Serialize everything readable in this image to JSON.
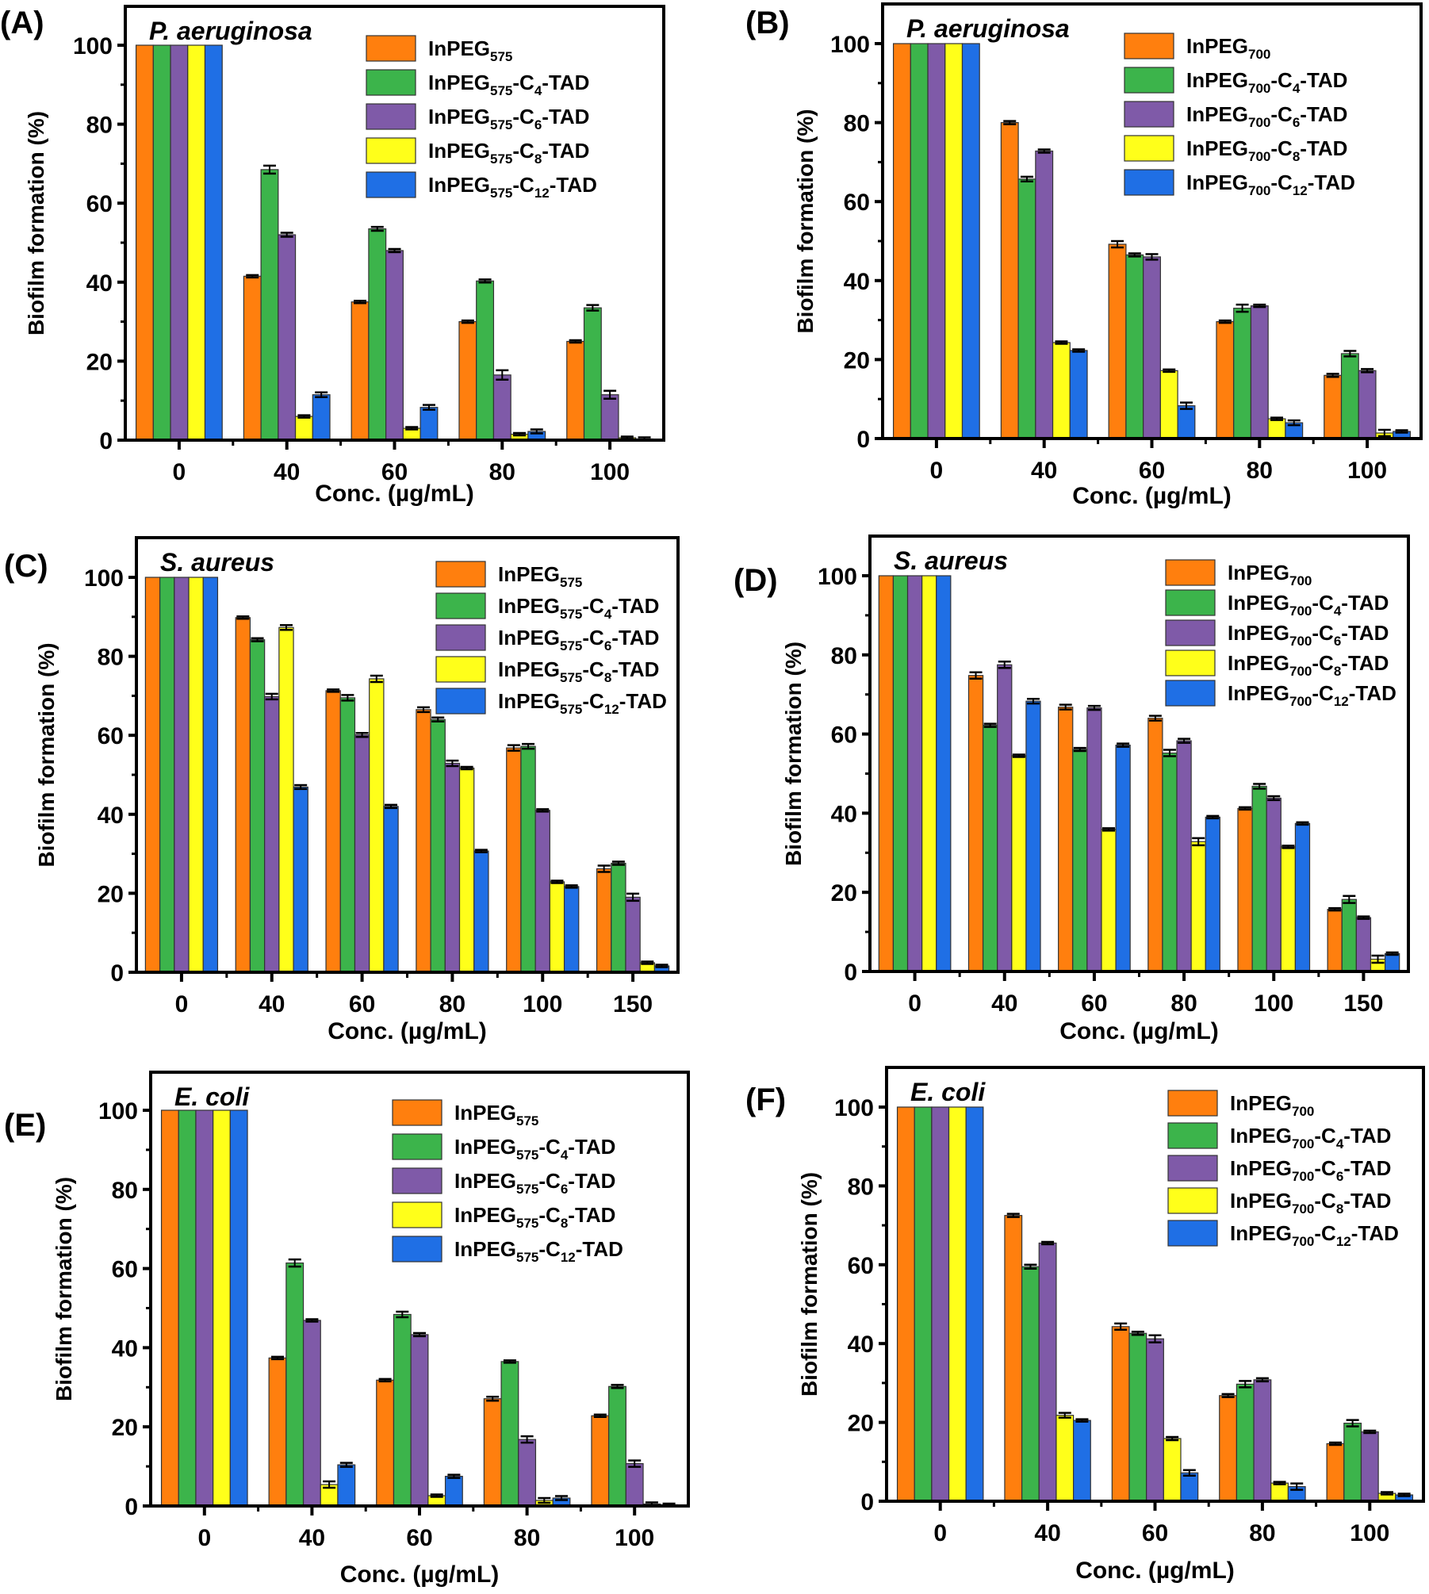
{
  "colors": {
    "series": [
      "#ff7f0e",
      "#3cb44b",
      "#7f5aa8",
      "#ffff1a",
      "#1f6fe5"
    ],
    "axis": "#000000",
    "bar_stroke": "#333333"
  },
  "chart_data": [
    {
      "panel_label": "(A)",
      "type": "bar",
      "organism": "P. aeruginosa",
      "xlabel": "Conc. (µg/mL)",
      "ylabel": "Biofilm formation (%)",
      "ylim": [
        0,
        110
      ],
      "yticks": [
        "0",
        "20",
        "40",
        "60",
        "80",
        "100"
      ],
      "categories": [
        "0",
        "40",
        "60",
        "80",
        "100"
      ],
      "legend_position": "top-right",
      "series": [
        {
          "name": "InPEG",
          "sub": "575",
          "suffix": "",
          "cn": "",
          "values": [
            100,
            41.5,
            35,
            30,
            25
          ],
          "errors": [
            0,
            0.3,
            0.3,
            0.3,
            0.2
          ]
        },
        {
          "name": "InPEG",
          "sub": "575",
          "suffix": "-TAD",
          "cn": "4",
          "values": [
            100,
            68.5,
            53.5,
            40.3,
            33.5
          ],
          "errors": [
            0,
            1,
            0.5,
            0.4,
            0.7
          ]
        },
        {
          "name": "InPEG",
          "sub": "575",
          "suffix": "-TAD",
          "cn": "6",
          "values": [
            100,
            52,
            48,
            16.5,
            11.5
          ],
          "errors": [
            0,
            0.5,
            0.4,
            1.2,
            1.0
          ]
        },
        {
          "name": "InPEG",
          "sub": "575",
          "suffix": "-TAD",
          "cn": "8",
          "values": [
            100,
            6,
            3,
            1.5,
            0.6
          ],
          "errors": [
            0,
            0.3,
            0.3,
            0.2,
            0.3
          ]
        },
        {
          "name": "InPEG",
          "sub": "575",
          "suffix": "-TAD",
          "cn": "12",
          "values": [
            100,
            11.5,
            8.3,
            2.2,
            0.3
          ],
          "errors": [
            0,
            0.6,
            0.6,
            0.5,
            0.4
          ]
        }
      ]
    },
    {
      "panel_label": "(B)",
      "type": "bar",
      "organism": "P. aeruginosa",
      "xlabel": "Conc. (µg/mL)",
      "ylabel": "Biofilm formation (%)",
      "ylim": [
        0,
        110
      ],
      "yticks": [
        "0",
        "20",
        "40",
        "60",
        "80",
        "100"
      ],
      "categories": [
        "0",
        "40",
        "60",
        "80",
        "100"
      ],
      "legend_position": "top-right",
      "series": [
        {
          "name": "InPEG",
          "sub": "700",
          "suffix": "",
          "cn": "",
          "values": [
            100,
            80,
            49.2,
            29.6,
            16
          ],
          "errors": [
            0,
            0.4,
            0.8,
            0.3,
            0.4
          ]
        },
        {
          "name": "InPEG",
          "sub": "700",
          "suffix": "-TAD",
          "cn": "4",
          "values": [
            100,
            65.7,
            46.5,
            33,
            21.5
          ],
          "errors": [
            0,
            0.6,
            0.4,
            0.9,
            0.7
          ]
        },
        {
          "name": "InPEG",
          "sub": "700",
          "suffix": "-TAD",
          "cn": "6",
          "values": [
            100,
            72.8,
            46,
            33.6,
            17.2
          ],
          "errors": [
            0,
            0.4,
            0.7,
            0.3,
            0.4
          ]
        },
        {
          "name": "InPEG",
          "sub": "700",
          "suffix": "-TAD",
          "cn": "8",
          "values": [
            100,
            24.3,
            17.2,
            5,
            1.4
          ],
          "errors": [
            0,
            0.3,
            0.3,
            0.3,
            0.8
          ]
        },
        {
          "name": "InPEG",
          "sub": "700",
          "suffix": "-TAD",
          "cn": "12",
          "values": [
            100,
            22.3,
            8.3,
            4,
            1.8
          ],
          "errors": [
            0,
            0.3,
            0.8,
            0.6,
            0.3
          ]
        }
      ]
    },
    {
      "panel_label": "(C)",
      "type": "bar",
      "organism": "S. aureus",
      "xlabel": "Conc. (µg/mL)",
      "ylabel": "Biofilm formation (%)",
      "ylim": [
        0,
        110
      ],
      "yticks": [
        "0",
        "20",
        "40",
        "60",
        "80",
        "100"
      ],
      "categories": [
        "0",
        "40",
        "60",
        "80",
        "100",
        "150"
      ],
      "legend_position": "top-right",
      "series": [
        {
          "name": "InPEG",
          "sub": "575",
          "suffix": "",
          "cn": "",
          "values": [
            100,
            89.8,
            71.3,
            66.5,
            56.8,
            26.2
          ],
          "errors": [
            0,
            0.3,
            0.3,
            0.6,
            0.7,
            0.8
          ]
        },
        {
          "name": "InPEG",
          "sub": "575",
          "suffix": "-TAD",
          "cn": "4",
          "values": [
            100,
            84.2,
            69.5,
            64,
            57.2,
            27.6
          ],
          "errors": [
            0,
            0.4,
            0.7,
            0.5,
            0.6,
            0.4
          ]
        },
        {
          "name": "InPEG",
          "sub": "575",
          "suffix": "-TAD",
          "cn": "6",
          "values": [
            100,
            69.8,
            60.1,
            52.9,
            41,
            19
          ],
          "errors": [
            0,
            0.7,
            0.5,
            0.7,
            0.3,
            0.9
          ]
        },
        {
          "name": "InPEG",
          "sub": "575",
          "suffix": "-TAD",
          "cn": "8",
          "values": [
            100,
            87.3,
            74.3,
            51.7,
            22.9,
            2.4
          ],
          "errors": [
            0,
            0.6,
            0.8,
            0.3,
            0.3,
            0.3
          ]
        },
        {
          "name": "InPEG",
          "sub": "575",
          "suffix": "-TAD",
          "cn": "12",
          "values": [
            100,
            46.9,
            42,
            30.7,
            21.7,
            1.6
          ],
          "errors": [
            0,
            0.5,
            0.4,
            0.3,
            0.3,
            0.3
          ]
        }
      ]
    },
    {
      "panel_label": "(D)",
      "type": "bar",
      "organism": "S. aureus",
      "xlabel": "Conc. (µg/mL)",
      "ylabel": "Biofilm formation (%)",
      "ylim": [
        0,
        110
      ],
      "yticks": [
        "0",
        "20",
        "40",
        "60",
        "80",
        "100"
      ],
      "categories": [
        "0",
        "40",
        "60",
        "80",
        "100",
        "150"
      ],
      "legend_position": "top-right",
      "series": [
        {
          "name": "InPEG",
          "sub": "700",
          "suffix": "",
          "cn": "",
          "values": [
            100,
            74.8,
            66.8,
            64,
            41.2,
            15.7
          ],
          "errors": [
            0,
            0.8,
            0.6,
            0.6,
            0.3,
            0.3
          ]
        },
        {
          "name": "InPEG",
          "sub": "700",
          "suffix": "-TAD",
          "cn": "4",
          "values": [
            100,
            62.2,
            56.1,
            55.2,
            46.8,
            18.2
          ],
          "errors": [
            0,
            0.4,
            0.4,
            0.8,
            0.6,
            0.9
          ]
        },
        {
          "name": "InPEG",
          "sub": "700",
          "suffix": "-TAD",
          "cn": "6",
          "values": [
            100,
            77.5,
            66.6,
            58.3,
            43.8,
            13.6
          ],
          "errors": [
            0,
            0.8,
            0.5,
            0.5,
            0.5,
            0.3
          ]
        },
        {
          "name": "InPEG",
          "sub": "700",
          "suffix": "-TAD",
          "cn": "8",
          "values": [
            100,
            54.5,
            35.9,
            32.8,
            31.5,
            3.1
          ],
          "errors": [
            0,
            0.3,
            0.2,
            0.9,
            0.3,
            0.9
          ]
        },
        {
          "name": "InPEG",
          "sub": "700",
          "suffix": "-TAD",
          "cn": "12",
          "values": [
            100,
            68.3,
            57.2,
            39,
            37.4,
            4.5
          ],
          "errors": [
            0,
            0.6,
            0.4,
            0.3,
            0.3,
            0.2
          ]
        }
      ]
    },
    {
      "panel_label": "(E)",
      "type": "bar",
      "organism": "E. coli",
      "xlabel": "Conc. (µg/mL)",
      "ylabel": "Biofilm formation (%)",
      "ylim": [
        0,
        110
      ],
      "yticks": [
        "0",
        "20",
        "40",
        "60",
        "80",
        "100"
      ],
      "categories": [
        "0",
        "40",
        "60",
        "80",
        "100"
      ],
      "legend_position": "top-right",
      "series": [
        {
          "name": "InPEG",
          "sub": "575",
          "suffix": "",
          "cn": "",
          "values": [
            100,
            37.4,
            31.8,
            27.1,
            22.8
          ],
          "errors": [
            0,
            0.2,
            0.3,
            0.5,
            0.2
          ]
        },
        {
          "name": "InPEG",
          "sub": "575",
          "suffix": "-TAD",
          "cn": "4",
          "values": [
            100,
            61.4,
            48.4,
            36.5,
            30.2
          ],
          "errors": [
            0,
            0.9,
            0.7,
            0.3,
            0.4
          ]
        },
        {
          "name": "InPEG",
          "sub": "575",
          "suffix": "-TAD",
          "cn": "6",
          "values": [
            100,
            46.9,
            43.3,
            16.8,
            10.7
          ],
          "errors": [
            0,
            0.3,
            0.4,
            0.8,
            0.8
          ]
        },
        {
          "name": "InPEG",
          "sub": "575",
          "suffix": "-TAD",
          "cn": "8",
          "values": [
            100,
            5.4,
            2.6,
            1.4,
            0.5
          ],
          "errors": [
            0,
            0.8,
            0.3,
            0.6,
            0.4
          ]
        },
        {
          "name": "InPEG",
          "sub": "575",
          "suffix": "-TAD",
          "cn": "12",
          "values": [
            100,
            10.4,
            7.5,
            2,
            0.3
          ],
          "errors": [
            0,
            0.5,
            0.4,
            0.5,
            0.3
          ]
        }
      ]
    },
    {
      "panel_label": "(F)",
      "type": "bar",
      "organism": "E. coli",
      "xlabel": "Conc. (µg/mL)",
      "ylabel": "Biofilm formation (%)",
      "ylim": [
        0,
        110
      ],
      "yticks": [
        "0",
        "20",
        "40",
        "60",
        "80",
        "100"
      ],
      "categories": [
        "0",
        "40",
        "60",
        "80",
        "100"
      ],
      "legend_position": "top-right",
      "series": [
        {
          "name": "InPEG",
          "sub": "700",
          "suffix": "",
          "cn": "",
          "values": [
            100,
            72.5,
            44.3,
            26.8,
            14.6
          ],
          "errors": [
            0,
            0.4,
            0.8,
            0.4,
            0.3
          ]
        },
        {
          "name": "InPEG",
          "sub": "700",
          "suffix": "-TAD",
          "cn": "4",
          "values": [
            100,
            59.5,
            42.6,
            29.7,
            19.8
          ],
          "errors": [
            0,
            0.5,
            0.4,
            0.8,
            0.8
          ]
        },
        {
          "name": "InPEG",
          "sub": "700",
          "suffix": "-TAD",
          "cn": "6",
          "values": [
            100,
            65.5,
            41.2,
            30.8,
            17.6
          ],
          "errors": [
            0,
            0.2,
            0.9,
            0.4,
            0.3
          ]
        },
        {
          "name": "InPEG",
          "sub": "700",
          "suffix": "-TAD",
          "cn": "8",
          "values": [
            100,
            21.8,
            15.9,
            4.6,
            2
          ],
          "errors": [
            0,
            0.6,
            0.4,
            0.3,
            0.2
          ]
        },
        {
          "name": "InPEG",
          "sub": "700",
          "suffix": "-TAD",
          "cn": "12",
          "values": [
            100,
            20.5,
            7.2,
            3.7,
            1.6
          ],
          "errors": [
            0,
            0.3,
            0.7,
            0.8,
            0.2
          ]
        }
      ]
    }
  ]
}
